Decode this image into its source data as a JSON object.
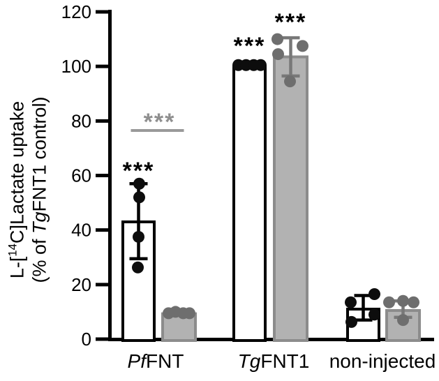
{
  "figure": {
    "ylabel": {
      "line1_pre": "L-[",
      "line1_sup": "14",
      "line1_post": "C]Lactate uptake",
      "line2_pre": "(% of ",
      "line2_italic": "Tg",
      "line2_post": "FNT1 control)"
    },
    "x_categories": [
      {
        "italic": "Pf",
        "rest": "FNT"
      },
      {
        "italic": "Tg",
        "rest": "FNT1"
      },
      {
        "italic": "",
        "rest": "non-injected"
      }
    ]
  },
  "chart_data": {
    "type": "bar",
    "title": "",
    "ylabel": "L-[14C]Lactate uptake (% of TgFNT1 control)",
    "xlabel": "",
    "ylim": [
      0,
      120
    ],
    "yticks": [
      0,
      20,
      40,
      60,
      80,
      100,
      120
    ],
    "grid": false,
    "legend": null,
    "categories": [
      "PfFNT",
      "TgFNT1",
      "non-injected"
    ],
    "series": [
      {
        "name": "open-bars",
        "fill": "#ffffff",
        "stroke": "#000000",
        "point_color": "#0d0d0d",
        "error_color": "#000000",
        "values": [
          43,
          100,
          11
        ],
        "errors": [
          {
            "low": 29.5,
            "high": 57
          },
          null,
          {
            "low": 7,
            "high": 16
          }
        ],
        "points": [
          [
            57,
            52,
            37.5,
            26.3
          ],
          [
            100.5,
            100.5,
            100.5,
            100.5
          ],
          [
            16.5,
            13.5,
            9,
            6.3
          ]
        ],
        "sig": [
          "***",
          "***",
          null
        ],
        "sig_y": [
          63.7,
          109.5,
          null
        ]
      },
      {
        "name": "gray-bars",
        "fill": "#b2b2b2",
        "stroke": "#8c8c8c",
        "point_color": "#6e6e6e",
        "error_color": "#787878",
        "values": [
          9.3,
          103.5,
          10.5
        ],
        "errors": [
          null,
          {
            "low": 96.5,
            "high": 110.5
          },
          {
            "low": 8,
            "high": 14
          }
        ],
        "points": [
          [
            9.5,
            10,
            9.5,
            9.5
          ],
          [
            110,
            107.5,
            104.5,
            94.5
          ],
          [
            13.5,
            14,
            13.5,
            7
          ]
        ],
        "sig": [
          null,
          "***",
          null
        ],
        "sig_y": [
          null,
          118.2,
          null
        ]
      }
    ],
    "comparison": {
      "category": "PfFNT",
      "label": "***",
      "line_y": 76.5,
      "label_y": 81.6,
      "color": "#999999",
      "label_color": "#8f8f8f"
    }
  }
}
